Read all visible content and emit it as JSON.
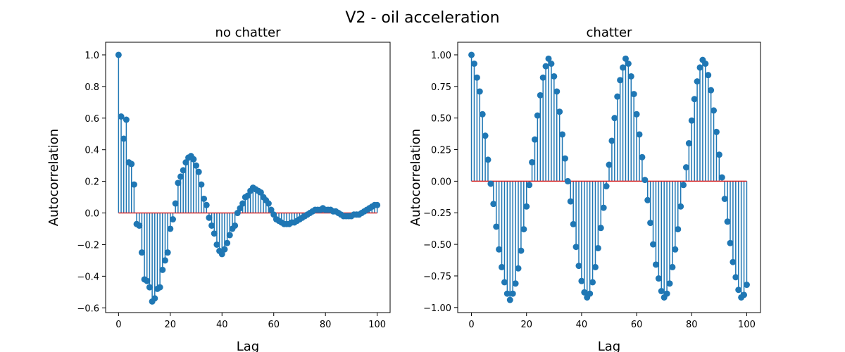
{
  "figure": {
    "title": "V2 - oil acceleration",
    "accent_color": "#1f77b4",
    "baseline_color": "#d62728"
  },
  "chart_data": [
    {
      "type": "stem",
      "title": "no chatter",
      "xlabel": "Lag",
      "ylabel": "Autocorrelation",
      "xlim": [
        -5,
        105
      ],
      "ylim": [
        -0.63,
        1.08
      ],
      "xticks": [
        0,
        20,
        40,
        60,
        80,
        100
      ],
      "yticks": [
        -0.6,
        -0.4,
        -0.2,
        0.0,
        0.2,
        0.4,
        0.6,
        0.8,
        1.0
      ],
      "ytick_labels": [
        "−0.6",
        "−0.4",
        "−0.2",
        "0.0",
        "0.2",
        "0.4",
        "0.6",
        "0.8",
        "1.0"
      ],
      "x_start": 0,
      "values": [
        1.0,
        0.61,
        0.47,
        0.59,
        0.32,
        0.31,
        0.18,
        -0.07,
        -0.08,
        -0.25,
        -0.42,
        -0.43,
        -0.47,
        -0.56,
        -0.54,
        -0.48,
        -0.47,
        -0.36,
        -0.3,
        -0.25,
        -0.1,
        -0.04,
        0.06,
        0.19,
        0.23,
        0.27,
        0.32,
        0.35,
        0.36,
        0.34,
        0.3,
        0.26,
        0.18,
        0.09,
        0.05,
        -0.03,
        -0.08,
        -0.13,
        -0.2,
        -0.24,
        -0.26,
        -0.23,
        -0.19,
        -0.14,
        -0.1,
        -0.08,
        0.0,
        0.03,
        0.06,
        0.1,
        0.11,
        0.14,
        0.16,
        0.15,
        0.14,
        0.13,
        0.1,
        0.08,
        0.06,
        0.02,
        -0.01,
        -0.04,
        -0.05,
        -0.06,
        -0.07,
        -0.07,
        -0.07,
        -0.06,
        -0.06,
        -0.05,
        -0.04,
        -0.03,
        -0.02,
        -0.01,
        0.0,
        0.01,
        0.02,
        0.02,
        0.02,
        0.03,
        0.02,
        0.02,
        0.02,
        0.01,
        0.01,
        0.0,
        -0.01,
        -0.02,
        -0.02,
        -0.02,
        -0.02,
        -0.01,
        -0.01,
        -0.01,
        0.0,
        0.01,
        0.02,
        0.03,
        0.04,
        0.05,
        0.05
      ]
    },
    {
      "type": "stem",
      "title": "chatter",
      "xlabel": "Lag",
      "ylabel": "Autocorrelation",
      "xlim": [
        -5,
        105
      ],
      "ylim": [
        -1.04,
        1.1
      ],
      "xticks": [
        0,
        20,
        40,
        60,
        80,
        100
      ],
      "yticks": [
        -1.0,
        -0.75,
        -0.5,
        -0.25,
        0.0,
        0.25,
        0.5,
        0.75,
        1.0
      ],
      "ytick_labels": [
        "−1.00",
        "−0.75",
        "−0.50",
        "−0.25",
        "0.00",
        "0.25",
        "0.50",
        "0.75",
        "1.00"
      ],
      "x_start": 0,
      "values": [
        1.0,
        0.93,
        0.82,
        0.71,
        0.53,
        0.36,
        0.17,
        -0.02,
        -0.18,
        -0.36,
        -0.54,
        -0.68,
        -0.8,
        -0.89,
        -0.94,
        -0.89,
        -0.81,
        -0.69,
        -0.55,
        -0.38,
        -0.2,
        -0.03,
        0.15,
        0.33,
        0.52,
        0.68,
        0.82,
        0.91,
        0.97,
        0.93,
        0.83,
        0.71,
        0.55,
        0.37,
        0.18,
        0.0,
        -0.16,
        -0.34,
        -0.52,
        -0.67,
        -0.79,
        -0.88,
        -0.92,
        -0.89,
        -0.8,
        -0.68,
        -0.53,
        -0.37,
        -0.21,
        -0.04,
        0.13,
        0.32,
        0.5,
        0.67,
        0.8,
        0.9,
        0.97,
        0.93,
        0.83,
        0.69,
        0.53,
        0.37,
        0.19,
        0.01,
        -0.15,
        -0.33,
        -0.5,
        -0.66,
        -0.77,
        -0.87,
        -0.92,
        -0.89,
        -0.81,
        -0.68,
        -0.54,
        -0.38,
        -0.2,
        -0.03,
        0.11,
        0.3,
        0.48,
        0.65,
        0.79,
        0.9,
        0.96,
        0.93,
        0.84,
        0.72,
        0.56,
        0.39,
        0.21,
        0.03,
        -0.14,
        -0.32,
        -0.49,
        -0.64,
        -0.76,
        -0.86,
        -0.92,
        -0.9,
        -0.82
      ]
    }
  ]
}
